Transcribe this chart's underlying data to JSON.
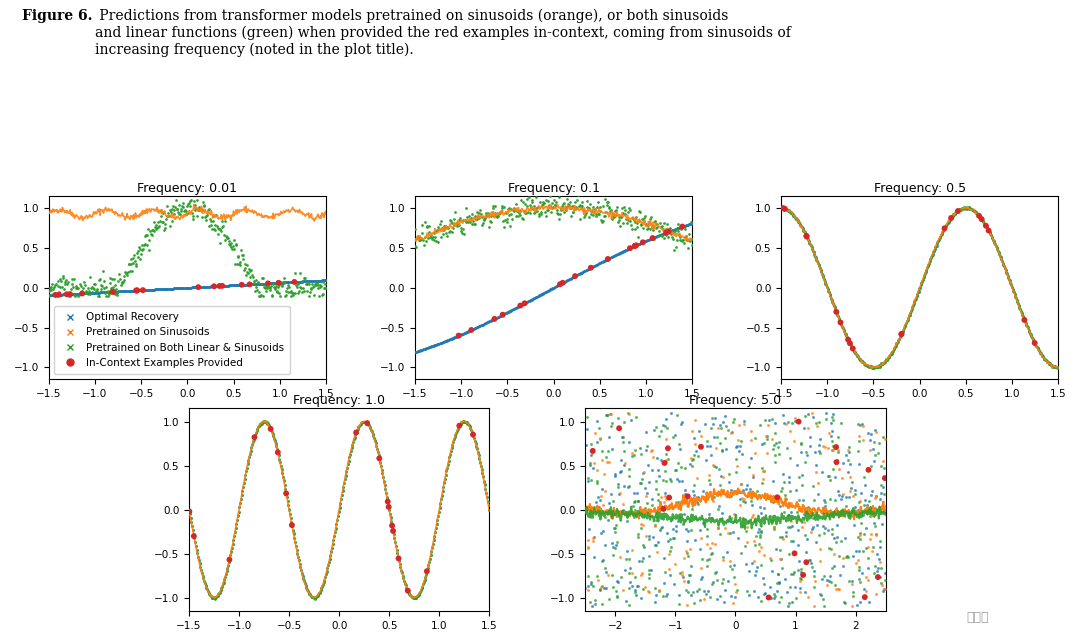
{
  "frequencies": [
    0.01,
    0.1,
    0.5,
    1.0,
    5.0
  ],
  "titles": [
    "Frequency: 0.01",
    "Frequency: 0.1",
    "Frequency: 0.5",
    "Frequency: 1.0",
    "Frequency: 5.0"
  ],
  "xlim_standard": [
    -1.5,
    1.5
  ],
  "xlim_freq5": [
    -2.5,
    2.5
  ],
  "ylim": [
    -1.15,
    1.15
  ],
  "color_optimal": "#1f77b4",
  "color_sinusoid": "#ff7f0e",
  "color_both": "#2ca02c",
  "color_context": "#d62728",
  "legend_labels": [
    "Optimal Recovery",
    "Pretrained on Sinusoids",
    "Pretrained on Both Linear & Sinusoids",
    "In-Context Examples Provided"
  ],
  "n_points_line": 400,
  "figsize": [
    10.8,
    6.43
  ],
  "caption_bold": "Figure 6.",
  "caption_rest": " Predictions from transformer models pretrained on sinusoids (orange), or both sinusoids\nand linear functions (green) when provided the red examples in-context, coming from sinusoids of\nincreasing frequency (noted in the plot title).",
  "background_color": "#ffffff"
}
